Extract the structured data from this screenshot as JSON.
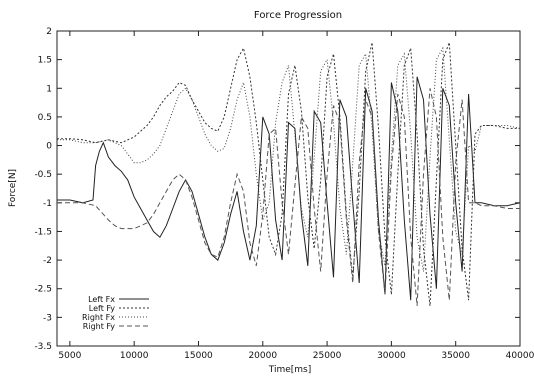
{
  "chart_data": {
    "type": "line",
    "title": "Force Progression",
    "xlabel": "Time[ms]",
    "ylabel": "Force[N]",
    "xlim": [
      4000,
      40000
    ],
    "ylim": [
      -3.5,
      2
    ],
    "grid": false,
    "legend_position": "bottom-left",
    "x_ticks": [
      5000,
      10000,
      15000,
      20000,
      25000,
      30000,
      35000,
      40000
    ],
    "x_tick_labels": [
      "5000",
      "10000",
      "15000",
      "20000",
      "25000",
      "30000",
      "35000",
      "40000"
    ],
    "y_ticks": [
      -3.5,
      -3,
      -2.5,
      -2,
      -1.5,
      -1,
      -0.5,
      0,
      0.5,
      1,
      1.5,
      2
    ],
    "y_tick_labels": [
      "-3.5",
      "-3",
      "-2.5",
      "-2",
      "-1.5",
      "-1",
      "-0.5",
      "0",
      "0.5",
      "1",
      "1.5",
      "2"
    ],
    "series": [
      {
        "name": "Left Fx",
        "color": "#222222",
        "dash": "",
        "x": [
          4000,
          5000,
          6000,
          6800,
          7000,
          7300,
          7600,
          8000,
          8500,
          9000,
          9500,
          10000,
          10500,
          11000,
          11500,
          12000,
          12500,
          13000,
          13500,
          14000,
          14500,
          15000,
          15500,
          16000,
          16500,
          17000,
          17500,
          18000,
          18500,
          19000,
          19500,
          20000,
          20500,
          21000,
          21500,
          22000,
          22500,
          23000,
          23500,
          24000,
          24500,
          25000,
          25500,
          26000,
          26500,
          27000,
          27500,
          28000,
          28500,
          29000,
          29500,
          30000,
          30500,
          31000,
          31500,
          32000,
          32500,
          33000,
          33500,
          34000,
          34500,
          35000,
          35500,
          36000,
          36500,
          37000,
          38000,
          39000,
          40000
        ],
        "y": [
          -0.95,
          -0.95,
          -1.0,
          -0.95,
          -0.35,
          -0.1,
          0.05,
          -0.2,
          -0.35,
          -0.45,
          -0.6,
          -0.9,
          -1.1,
          -1.3,
          -1.5,
          -1.6,
          -1.4,
          -1.1,
          -0.8,
          -0.6,
          -0.8,
          -1.2,
          -1.6,
          -1.9,
          -2.0,
          -1.7,
          -1.2,
          -0.8,
          -1.5,
          -2.0,
          -1.4,
          0.5,
          0.2,
          -1.3,
          -2.0,
          0.4,
          0.3,
          -1.2,
          -2.1,
          0.6,
          0.4,
          -1.0,
          -2.3,
          0.8,
          0.5,
          -1.0,
          -2.4,
          1.0,
          0.6,
          -1.3,
          -2.6,
          1.1,
          0.6,
          -1.3,
          -2.7,
          1.2,
          0.8,
          -1.2,
          -2.5,
          1.0,
          0.7,
          -1.0,
          -2.2,
          0.9,
          -1.0,
          -1.0,
          -1.05,
          -1.05,
          -1.0
        ]
      },
      {
        "name": "Left Fy",
        "color": "#333333",
        "dash": "2,2",
        "x": [
          4000,
          5000,
          6000,
          7000,
          8000,
          9000,
          10000,
          10500,
          11000,
          11500,
          12000,
          12500,
          13000,
          13500,
          14000,
          14500,
          15000,
          15500,
          16000,
          16500,
          17000,
          17500,
          18000,
          18500,
          19000,
          19500,
          20000,
          20500,
          21000,
          21500,
          22000,
          22500,
          23000,
          23500,
          24000,
          24500,
          25000,
          25500,
          26000,
          26500,
          27000,
          27500,
          28000,
          28500,
          29000,
          29500,
          30000,
          30500,
          31000,
          31500,
          32000,
          32500,
          33000,
          33500,
          34000,
          34500,
          35000,
          35500,
          36000,
          36500,
          37000,
          38000,
          39000,
          40000
        ],
        "y": [
          0.12,
          0.12,
          0.1,
          0.05,
          0.1,
          0.05,
          0.15,
          0.25,
          0.35,
          0.5,
          0.7,
          0.85,
          0.95,
          1.1,
          1.05,
          0.8,
          0.6,
          0.4,
          0.3,
          0.25,
          0.5,
          1.0,
          1.5,
          1.7,
          1.2,
          0.4,
          -0.6,
          -1.6,
          -1.9,
          -1.2,
          0.9,
          1.4,
          0.6,
          -0.9,
          -1.8,
          -0.6,
          1.2,
          1.6,
          0.5,
          -1.2,
          -2.3,
          -0.8,
          1.3,
          1.8,
          0.3,
          -1.6,
          -2.6,
          -0.5,
          1.4,
          1.7,
          0.2,
          -1.8,
          -2.8,
          -0.6,
          1.5,
          1.8,
          0.0,
          -1.8,
          -2.7,
          0.2,
          0.35,
          0.35,
          0.3,
          0.3
        ]
      },
      {
        "name": "Right Fx",
        "color": "#444444",
        "dash": "1,2",
        "x": [
          4000,
          5000,
          6000,
          7000,
          8000,
          9000,
          10000,
          10500,
          11000,
          11500,
          12000,
          12500,
          13000,
          13500,
          14000,
          14500,
          15000,
          15500,
          16000,
          16500,
          17000,
          17500,
          18000,
          18500,
          19000,
          19500,
          20000,
          20500,
          21000,
          21500,
          22000,
          22500,
          23000,
          23500,
          24000,
          24500,
          25000,
          25500,
          26000,
          26500,
          27000,
          27500,
          28000,
          28500,
          29000,
          29500,
          30000,
          30500,
          31000,
          31500,
          32000,
          32500,
          33000,
          33500,
          34000,
          34500,
          35000,
          35500,
          36000,
          36500,
          37000,
          38000,
          39000,
          40000
        ],
        "y": [
          0.1,
          0.1,
          0.05,
          0.05,
          0.1,
          0.0,
          -0.3,
          -0.3,
          -0.25,
          -0.15,
          0.0,
          0.3,
          0.6,
          0.9,
          1.0,
          0.8,
          0.5,
          0.2,
          0.0,
          -0.1,
          -0.05,
          0.3,
          0.8,
          1.1,
          0.5,
          -0.5,
          -1.3,
          -1.0,
          0.4,
          1.1,
          1.4,
          0.2,
          -1.1,
          -1.6,
          -0.2,
          1.3,
          1.5,
          0.4,
          -1.1,
          -1.9,
          -0.3,
          1.4,
          1.6,
          0.3,
          -1.5,
          -2.1,
          -0.2,
          1.4,
          1.6,
          0.2,
          -1.6,
          -2.2,
          -0.2,
          1.5,
          1.7,
          0.1,
          -1.5,
          -1.9,
          0.0,
          -0.1,
          0.35,
          0.35,
          0.35,
          0.3
        ]
      },
      {
        "name": "Right Fy",
        "color": "#555555",
        "dash": "5,3",
        "x": [
          4000,
          5000,
          6000,
          7000,
          8000,
          8500,
          9000,
          10000,
          11000,
          11500,
          12000,
          12500,
          13000,
          13500,
          14000,
          14500,
          15000,
          15500,
          16000,
          16500,
          17000,
          17500,
          18000,
          18500,
          19000,
          19500,
          20000,
          20500,
          21000,
          21500,
          22000,
          22500,
          23000,
          23500,
          24000,
          24500,
          25000,
          25500,
          26000,
          26500,
          27000,
          27500,
          28000,
          28500,
          29000,
          29500,
          30000,
          30500,
          31000,
          31500,
          32000,
          32500,
          33000,
          33500,
          34000,
          34500,
          35000,
          35500,
          36000,
          36500,
          37000,
          38000,
          39000,
          40000
        ],
        "y": [
          -1.0,
          -1.0,
          -1.0,
          -1.05,
          -1.3,
          -1.4,
          -1.45,
          -1.45,
          -1.35,
          -1.2,
          -1.0,
          -0.8,
          -0.6,
          -0.5,
          -0.6,
          -0.9,
          -1.3,
          -1.7,
          -1.9,
          -1.95,
          -1.6,
          -1.0,
          -0.5,
          -0.8,
          -1.7,
          -2.1,
          -1.2,
          0.2,
          0.3,
          -1.0,
          -1.9,
          -0.7,
          0.5,
          0.3,
          -1.1,
          -2.2,
          -0.5,
          0.7,
          0.4,
          -1.3,
          -2.4,
          -0.3,
          0.8,
          0.5,
          -1.5,
          -2.6,
          -0.4,
          0.9,
          0.5,
          -1.6,
          -2.8,
          -0.5,
          1.0,
          0.5,
          -1.6,
          -2.7,
          -0.3,
          0.8,
          -1.0,
          -1.0,
          -1.05,
          -1.05,
          -1.1,
          -1.1
        ]
      }
    ]
  }
}
